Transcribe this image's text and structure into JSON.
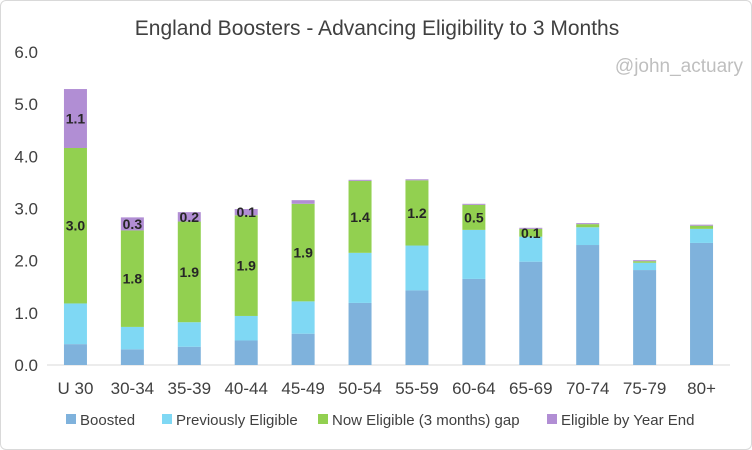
{
  "watermark": "@john_actuary",
  "chart_data": {
    "type": "bar",
    "stacked": true,
    "title": "England Boosters - Advancing Eligibility to 3 Months",
    "xlabel": "",
    "ylabel": "",
    "ylim": [
      0,
      6
    ],
    "yticks": [
      "0.0",
      "1.0",
      "2.0",
      "3.0",
      "4.0",
      "5.0",
      "6.0"
    ],
    "categories": [
      "U 30",
      "30-34",
      "35-39",
      "40-44",
      "45-49",
      "50-54",
      "55-59",
      "60-64",
      "65-69",
      "70-74",
      "75-79",
      "80+"
    ],
    "series": [
      {
        "name": "Boosted",
        "color": "#7fb2dc",
        "values": [
          0.4,
          0.3,
          0.35,
          0.47,
          0.6,
          1.19,
          1.43,
          1.65,
          1.98,
          2.3,
          1.82,
          2.34
        ],
        "labels": [
          "",
          "",
          "",
          "",
          "",
          "",
          "",
          "",
          "",
          "",
          "",
          ""
        ]
      },
      {
        "name": "Previously Eligible",
        "color": "#7fd8f4",
        "values": [
          0.78,
          0.43,
          0.47,
          0.47,
          0.62,
          0.96,
          0.86,
          0.94,
          0.48,
          0.34,
          0.14,
          0.27
        ],
        "labels": [
          "",
          "",
          "",
          "",
          "",
          "",
          "",
          "",
          "",
          "",
          "",
          ""
        ]
      },
      {
        "name": "Now Eligible (3 months) gap",
        "color": "#92d050",
        "values": [
          2.98,
          1.85,
          1.93,
          1.93,
          1.87,
          1.38,
          1.25,
          0.48,
          0.15,
          0.06,
          0.03,
          0.06
        ],
        "labels": [
          "3.0",
          "1.8",
          "1.9",
          "1.9",
          "1.9",
          "1.4",
          "1.2",
          "0.5",
          "0.1",
          "",
          "",
          ""
        ]
      },
      {
        "name": "Eligible by Year End",
        "color": "#b18ed4",
        "values": [
          1.13,
          0.25,
          0.18,
          0.12,
          0.07,
          0.02,
          0.02,
          0.02,
          0.02,
          0.02,
          0.02,
          0.02
        ],
        "labels": [
          "1.1",
          "0.3",
          "0.2",
          "0.1",
          "",
          "",
          "",
          "",
          "",
          "",
          "",
          ""
        ]
      }
    ],
    "legend_position": "bottom",
    "grid": false
  }
}
